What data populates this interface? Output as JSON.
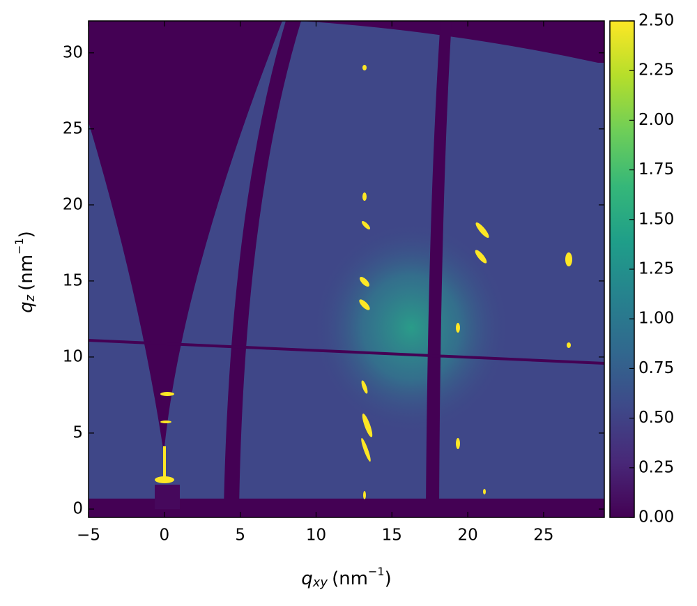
{
  "chart_data": {
    "type": "heatmap",
    "x_label": {
      "symbol": "q",
      "subscript": "xy",
      "unit": "(nm",
      "superscript": "−1",
      "close": ")"
    },
    "y_label": {
      "symbol": "q",
      "subscript": "z",
      "unit": "(nm",
      "superscript": "−1",
      "close": ")"
    },
    "xlim": [
      -5,
      29
    ],
    "ylim": [
      -0.55,
      32.1
    ],
    "xticks": [
      {
        "value": -5,
        "label": "−5"
      },
      0,
      5,
      10,
      15,
      20,
      25
    ],
    "yticks": [
      0,
      5,
      10,
      15,
      20,
      25,
      30
    ],
    "colormap": "viridis",
    "clim": [
      0,
      2.5
    ],
    "colorbar_ticks": [
      {
        "value": 0,
        "label": "0.00"
      },
      {
        "value": 0.25,
        "label": "0.25"
      },
      {
        "value": 0.5,
        "label": "0.50"
      },
      {
        "value": 0.75,
        "label": "0.75"
      },
      {
        "value": 1,
        "label": "1.00"
      },
      {
        "value": 1.25,
        "label": "1.25"
      },
      {
        "value": 1.5,
        "label": "1.50"
      },
      {
        "value": 1.75,
        "label": "1.75"
      },
      {
        "value": 2,
        "label": "2.00"
      },
      {
        "value": 2.25,
        "label": "2.25"
      },
      {
        "value": 2.5,
        "label": "2.50"
      }
    ]
  }
}
